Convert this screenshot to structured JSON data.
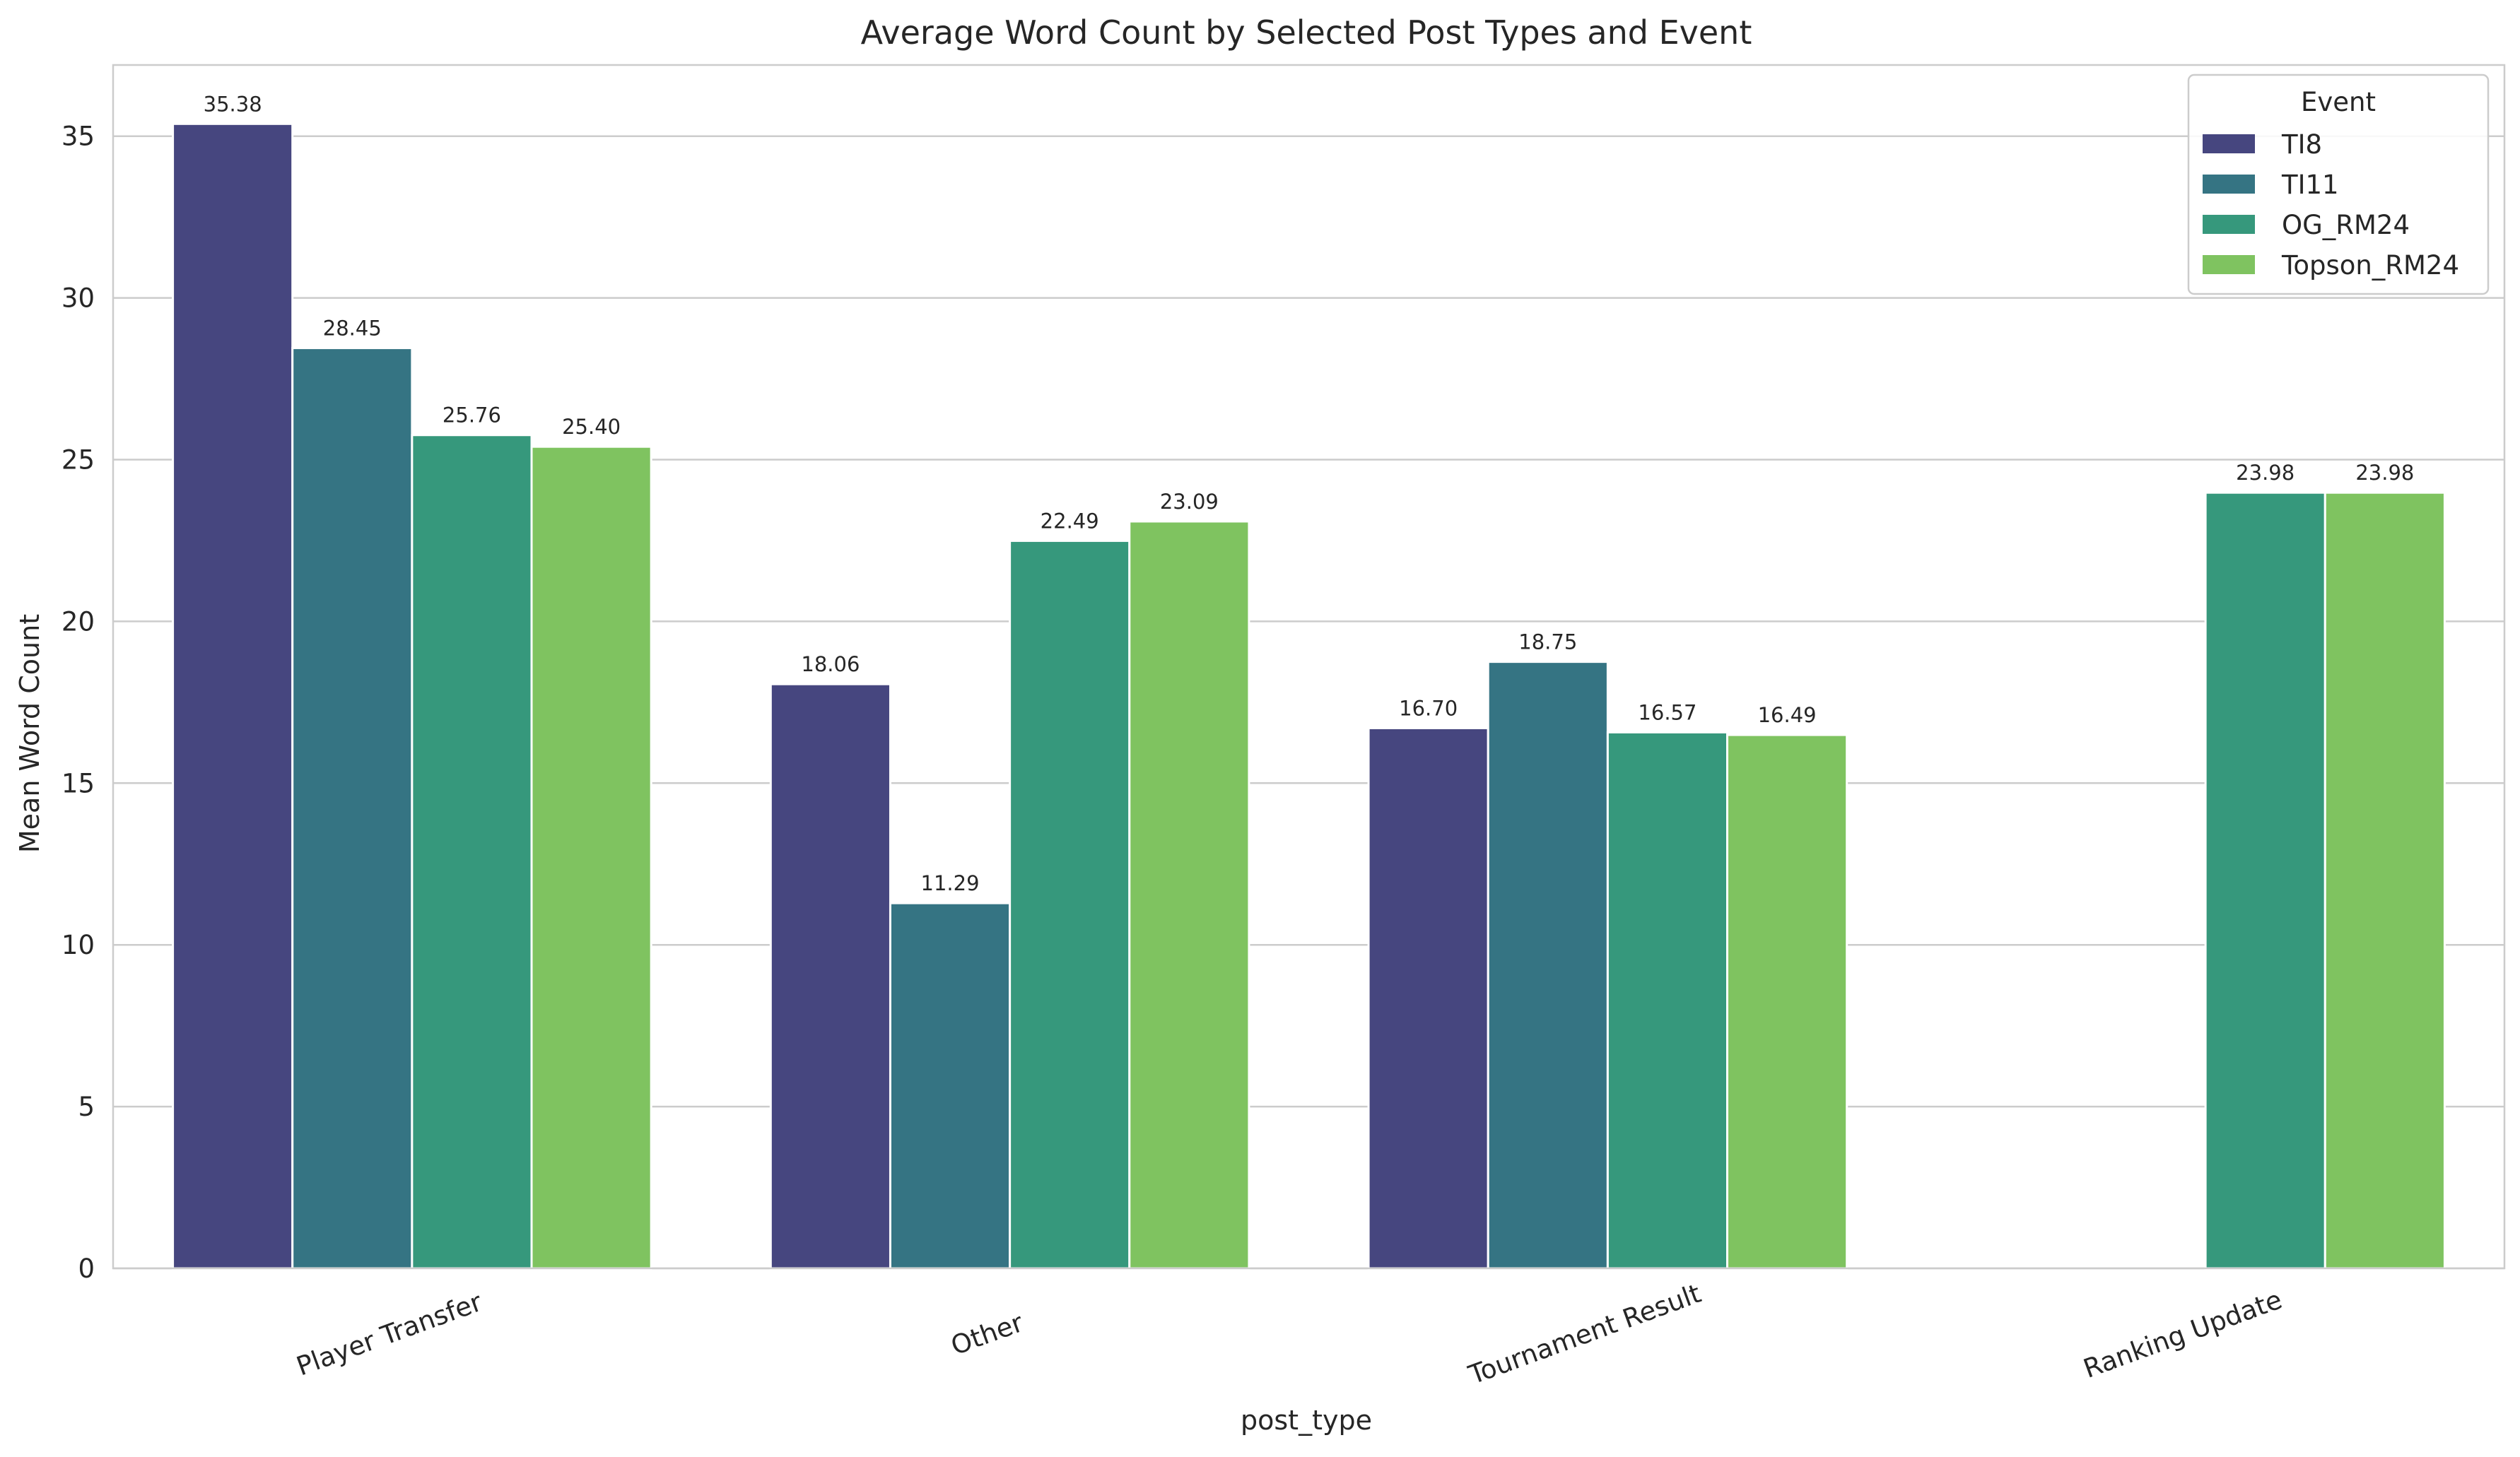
{
  "chart_data": {
    "type": "bar",
    "title": "Average Word Count by Selected Post Types and Event",
    "xlabel": "post_type",
    "ylabel": "Mean Word Count",
    "ylim": [
      0,
      37.2
    ],
    "yticks": [
      0,
      5,
      10,
      15,
      20,
      25,
      30,
      35
    ],
    "grid": "horizontal",
    "categories": [
      "Player Transfer",
      "Other",
      "Tournament Result",
      "Ranking Update"
    ],
    "legend": {
      "title": "Event",
      "placement": "top-right"
    },
    "series": [
      {
        "name": "TI8",
        "color": "#46467f",
        "values": [
          35.38,
          18.06,
          16.7,
          null
        ],
        "labels": [
          "35.38",
          "18.06",
          "16.70",
          ""
        ]
      },
      {
        "name": "TI11",
        "color": "#357483",
        "values": [
          28.45,
          11.29,
          18.75,
          null
        ],
        "labels": [
          "28.45",
          "11.29",
          "18.75",
          ""
        ]
      },
      {
        "name": "OG_RM24",
        "color": "#36987c",
        "values": [
          25.76,
          22.49,
          16.57,
          23.98
        ],
        "labels": [
          "25.76",
          "22.49",
          "16.57",
          "23.98"
        ]
      },
      {
        "name": "Topson_RM24",
        "color": "#7fc360",
        "values": [
          25.4,
          23.09,
          16.49,
          23.98
        ],
        "labels": [
          "25.40",
          "23.09",
          "16.49",
          "23.98"
        ]
      }
    ]
  }
}
